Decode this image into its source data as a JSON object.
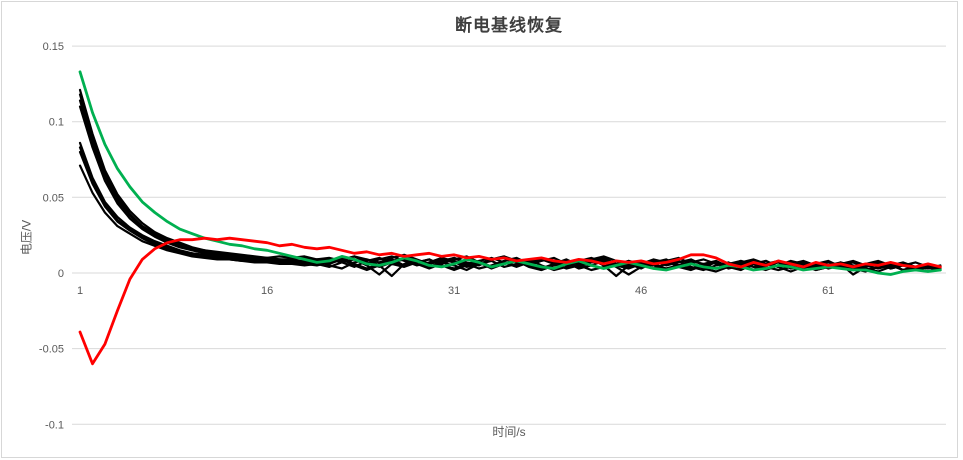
{
  "title": "断电基线恢复",
  "colors": {
    "background": "#ffffff",
    "frame_border": "#d7d7d7",
    "grid": "#d9d9d9",
    "tick_text": "#595959",
    "title_text": "#3f3f3f",
    "series_black": "#000000",
    "series_green": "#00b050",
    "series_red": "#ff0000"
  },
  "chart_data": {
    "type": "line",
    "title": "断电基线恢复",
    "xlabel": "时间/s",
    "ylabel": "电压/V",
    "legend": "none",
    "grid": "horizontal",
    "xlim": [
      1,
      70
    ],
    "ylim": [
      -0.1,
      0.15
    ],
    "x_ticks": [
      {
        "value": 1,
        "label": "1"
      },
      {
        "value": 16,
        "label": "16"
      },
      {
        "value": 31,
        "label": "31"
      },
      {
        "value": 46,
        "label": "46"
      },
      {
        "value": 61,
        "label": "61"
      }
    ],
    "y_ticks": [
      {
        "value": 0.15,
        "label": "0.15"
      },
      {
        "value": 0.1,
        "label": "0.1"
      },
      {
        "value": 0.05,
        "label": "0.05"
      },
      {
        "value": 0,
        "label": "0"
      },
      {
        "value": -0.05,
        "label": "-0.05"
      },
      {
        "value": -0.1,
        "label": "-0.1"
      }
    ],
    "x": [
      1,
      2,
      3,
      4,
      5,
      6,
      7,
      8,
      9,
      10,
      11,
      12,
      13,
      14,
      15,
      16,
      17,
      18,
      19,
      20,
      21,
      22,
      23,
      24,
      25,
      26,
      27,
      28,
      29,
      30,
      31,
      32,
      33,
      34,
      35,
      36,
      37,
      38,
      39,
      40,
      41,
      42,
      43,
      44,
      45,
      46,
      47,
      48,
      49,
      50,
      51,
      52,
      53,
      54,
      55,
      56,
      57,
      58,
      59,
      60,
      61,
      62,
      63,
      64,
      65,
      66,
      67,
      68,
      69,
      70
    ],
    "series": [
      {
        "name": "black-1",
        "color": "#000000",
        "width": 2.2,
        "values": [
          0.121,
          0.092,
          0.068,
          0.052,
          0.041,
          0.033,
          0.027,
          0.023,
          0.02,
          0.017,
          0.015,
          0.014,
          0.013,
          0.012,
          0.011,
          0.01,
          0.011,
          0.01,
          0.011,
          0.009,
          0.01,
          0.008,
          0.011,
          0.009,
          0.007,
          0.01,
          0.012,
          0.009,
          0.006,
          0.008,
          0.01,
          0.007,
          0.005,
          0.009,
          0.011,
          0.008,
          0.006,
          0.009,
          0.007,
          0.005,
          0.008,
          0.01,
          0.007,
          0.005,
          0.008,
          0.006,
          0.009,
          0.007,
          0.005,
          0.007,
          0.009,
          0.006,
          0.004,
          0.007,
          0.009,
          0.006,
          0.004,
          0.006,
          0.008,
          0.005,
          0.004,
          0.006,
          0.008,
          0.005,
          0.003,
          0.005,
          0.007,
          0.004,
          0.003,
          0.005
        ]
      },
      {
        "name": "black-2",
        "color": "#000000",
        "width": 2.2,
        "values": [
          0.118,
          0.089,
          0.066,
          0.05,
          0.039,
          0.031,
          0.026,
          0.022,
          0.019,
          0.016,
          0.015,
          0.013,
          0.012,
          0.011,
          0.01,
          0.01,
          0.009,
          0.009,
          0.01,
          0.008,
          0.008,
          0.011,
          0.009,
          0.006,
          0.009,
          0.011,
          0.008,
          0.005,
          0.007,
          0.01,
          0.008,
          0.005,
          0.008,
          0.01,
          0.007,
          0.004,
          0.007,
          0.009,
          0.006,
          0.008,
          0.006,
          0.009,
          0.011,
          0.008,
          0.005,
          0.007,
          0.005,
          0.008,
          0.01,
          0.006,
          0.004,
          0.007,
          0.005,
          0.008,
          0.006,
          0.003,
          0.005,
          0.008,
          0.006,
          0.004,
          0.007,
          0.005,
          0.003,
          0.006,
          0.008,
          0.005,
          0.002,
          0.004,
          0.006,
          0.004
        ]
      },
      {
        "name": "black-3",
        "color": "#000000",
        "width": 2.2,
        "values": [
          0.114,
          0.086,
          0.064,
          0.048,
          0.038,
          0.03,
          0.025,
          0.021,
          0.018,
          0.015,
          0.014,
          0.012,
          0.011,
          0.01,
          0.01,
          0.009,
          0.009,
          0.008,
          0.008,
          0.009,
          0.009,
          0.007,
          0.004,
          0.008,
          0.01,
          0.007,
          0.005,
          0.008,
          0.006,
          0.009,
          0.007,
          0.004,
          0.006,
          0.009,
          0.011,
          0.007,
          0.005,
          0.008,
          0.01,
          0.006,
          0.004,
          0.007,
          0.009,
          0.005,
          0.003,
          0.006,
          0.008,
          0.005,
          0.007,
          0.009,
          0.005,
          0.003,
          0.006,
          0.008,
          0.004,
          0.006,
          0.008,
          0.005,
          0.003,
          0.006,
          0.004,
          0.007,
          0.005,
          0.002,
          0.004,
          0.007,
          0.005,
          0.003,
          0.005,
          0.003
        ]
      },
      {
        "name": "black-4",
        "color": "#000000",
        "width": 2.2,
        "values": [
          0.11,
          0.083,
          0.061,
          0.046,
          0.036,
          0.029,
          0.024,
          0.02,
          0.017,
          0.015,
          0.013,
          0.012,
          0.011,
          0.01,
          0.009,
          0.009,
          0.008,
          0.008,
          0.007,
          0.007,
          0.006,
          0.009,
          0.011,
          0.007,
          0.004,
          0.007,
          0.009,
          0.006,
          0.003,
          0.006,
          0.009,
          0.011,
          0.007,
          0.004,
          0.007,
          0.005,
          0.008,
          0.01,
          0.006,
          0.003,
          0.005,
          0.008,
          0.01,
          0.006,
          0.004,
          0.007,
          0.005,
          0.002,
          0.005,
          0.008,
          0.006,
          0.003,
          0.005,
          0.007,
          0.004,
          0.002,
          0.005,
          0.007,
          0.004,
          0.006,
          0.008,
          0.004,
          0.002,
          0.005,
          0.007,
          0.003,
          0.005,
          0.007,
          0.004,
          0.002
        ]
      },
      {
        "name": "black-5",
        "color": "#000000",
        "width": 2.2,
        "values": [
          0.086,
          0.063,
          0.047,
          0.037,
          0.03,
          0.025,
          0.021,
          0.018,
          0.015,
          0.013,
          0.012,
          0.011,
          0.01,
          0.009,
          0.008,
          0.008,
          0.008,
          0.007,
          0.007,
          0.006,
          0.008,
          0.01,
          0.006,
          0.003,
          0.006,
          0.009,
          0.005,
          0.007,
          0.009,
          0.005,
          0.003,
          0.006,
          0.008,
          0.004,
          0.006,
          0.009,
          0.005,
          0.002,
          0.005,
          0.007,
          0.009,
          0.005,
          0.003,
          0.006,
          0.008,
          0.004,
          0.006,
          0.008,
          0.004,
          0.002,
          0.005,
          0.007,
          0.003,
          0.005,
          0.008,
          0.004,
          0.002,
          0.004,
          0.007,
          0.003,
          0.005,
          0.007,
          0.003,
          0.001,
          0.004,
          0.006,
          0.002,
          0.004,
          0.006,
          0.003
        ]
      },
      {
        "name": "black-6",
        "color": "#000000",
        "width": 2.2,
        "values": [
          0.083,
          0.061,
          0.045,
          0.035,
          0.029,
          0.024,
          0.02,
          0.017,
          0.014,
          0.013,
          0.011,
          0.01,
          0.009,
          0.009,
          0.008,
          0.008,
          0.007,
          0.007,
          0.006,
          0.008,
          0.005,
          0.003,
          0.007,
          0.009,
          0.005,
          -0.002,
          0.006,
          0.008,
          0.004,
          0.007,
          0.01,
          0.006,
          0.003,
          0.005,
          0.008,
          0.01,
          0.006,
          0.003,
          0.006,
          0.009,
          0.005,
          0.002,
          0.004,
          0.008,
          0.006,
          0.003,
          0.007,
          0.009,
          0.005,
          0.003,
          0.006,
          0.008,
          0.004,
          0.002,
          0.006,
          0.008,
          0.004,
          0.007,
          0.005,
          0.002,
          0.004,
          0.006,
          0.002,
          0.005,
          0.007,
          0.004,
          0.006,
          0.003,
          0.001,
          0.004
        ]
      },
      {
        "name": "black-7",
        "color": "#000000",
        "width": 2.2,
        "values": [
          0.08,
          0.059,
          0.044,
          0.034,
          0.028,
          0.023,
          0.019,
          0.016,
          0.014,
          0.012,
          0.011,
          0.01,
          0.009,
          0.008,
          0.008,
          0.007,
          0.007,
          0.006,
          0.006,
          0.005,
          0.007,
          0.009,
          0.005,
          0.002,
          0.005,
          0.008,
          0.01,
          0.006,
          0.004,
          0.007,
          0.005,
          0.002,
          0.006,
          0.008,
          0.004,
          0.006,
          0.009,
          0.005,
          0.002,
          0.004,
          0.007,
          0.009,
          0.005,
          -0.002,
          0.005,
          0.007,
          0.003,
          0.006,
          0.008,
          0.004,
          0.002,
          0.005,
          0.007,
          0.003,
          0.006,
          0.008,
          0.004,
          0.001,
          0.004,
          0.006,
          0.003,
          0.005,
          0.007,
          0.003,
          0.001,
          0.004,
          0.006,
          0.002,
          0.004,
          0.003
        ]
      },
      {
        "name": "black-8",
        "color": "#000000",
        "width": 2.2,
        "values": [
          0.071,
          0.053,
          0.04,
          0.031,
          0.026,
          0.021,
          0.018,
          0.015,
          0.013,
          0.011,
          0.01,
          0.009,
          0.009,
          0.008,
          0.007,
          0.007,
          0.006,
          0.006,
          0.005,
          0.006,
          0.004,
          0.007,
          0.009,
          0.005,
          -0.001,
          0.006,
          0.004,
          0.007,
          0.009,
          0.005,
          0.002,
          0.005,
          0.007,
          0.003,
          0.006,
          0.008,
          0.004,
          0.002,
          0.005,
          0.007,
          0.003,
          0.005,
          0.008,
          0.004,
          -0.001,
          0.004,
          0.006,
          0.003,
          0.005,
          0.007,
          0.003,
          0.001,
          0.004,
          0.006,
          0.002,
          0.005,
          0.007,
          0.003,
          0.005,
          0.002,
          0.004,
          0.006,
          -0.001,
          0.004,
          0.006,
          0.003,
          0.005,
          0.002,
          0.004,
          0.002
        ]
      },
      {
        "name": "green",
        "color": "#00b050",
        "width": 2.8,
        "values": [
          0.133,
          0.106,
          0.085,
          0.069,
          0.057,
          0.047,
          0.04,
          0.034,
          0.029,
          0.026,
          0.023,
          0.021,
          0.019,
          0.018,
          0.016,
          0.015,
          0.013,
          0.011,
          0.009,
          0.007,
          0.008,
          0.011,
          0.009,
          0.006,
          0.005,
          0.007,
          0.01,
          0.008,
          0.005,
          0.004,
          0.006,
          0.009,
          0.007,
          0.004,
          0.006,
          0.008,
          0.006,
          0.004,
          0.003,
          0.006,
          0.008,
          0.005,
          0.003,
          0.005,
          0.007,
          0.005,
          0.003,
          0.002,
          0.004,
          0.006,
          0.004,
          0.003,
          0.005,
          0.004,
          0.002,
          0.003,
          0.005,
          0.004,
          0.002,
          0.003,
          0.004,
          0.003,
          0.002,
          0.002,
          0.0,
          -0.001,
          0.001,
          0.002,
          0.001,
          0.002
        ]
      },
      {
        "name": "red",
        "color": "#ff0000",
        "width": 2.8,
        "values": [
          -0.039,
          -0.06,
          -0.047,
          -0.025,
          -0.004,
          0.009,
          0.016,
          0.02,
          0.022,
          0.022,
          0.023,
          0.022,
          0.023,
          0.022,
          0.021,
          0.02,
          0.018,
          0.019,
          0.017,
          0.016,
          0.017,
          0.015,
          0.013,
          0.014,
          0.012,
          0.013,
          0.011,
          0.012,
          0.013,
          0.011,
          0.012,
          0.01,
          0.011,
          0.009,
          0.01,
          0.008,
          0.009,
          0.01,
          0.008,
          0.007,
          0.009,
          0.008,
          0.006,
          0.008,
          0.007,
          0.008,
          0.006,
          0.007,
          0.009,
          0.012,
          0.012,
          0.01,
          0.006,
          0.004,
          0.007,
          0.005,
          0.008,
          0.006,
          0.004,
          0.007,
          0.005,
          0.006,
          0.004,
          0.006,
          0.005,
          0.007,
          0.005,
          0.004,
          0.006,
          0.004
        ]
      }
    ]
  }
}
